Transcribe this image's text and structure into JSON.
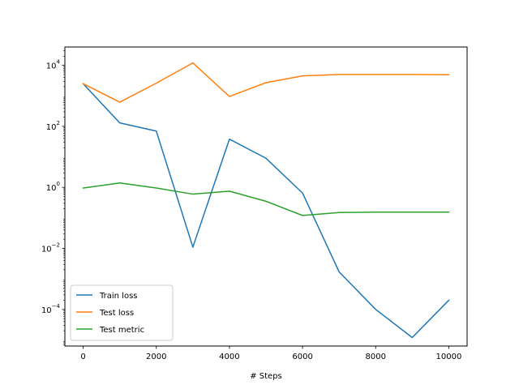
{
  "chart_data": {
    "type": "line",
    "title": "",
    "xlabel": "# Steps",
    "ylabel": "",
    "yscale": "log",
    "xlim": [
      -500,
      10500
    ],
    "ylim_log10": [
      -5.2,
      4.6
    ],
    "x_ticks": [
      0,
      2000,
      4000,
      6000,
      8000,
      10000
    ],
    "x_tick_labels": [
      "0",
      "2000",
      "4000",
      "6000",
      "8000",
      "10000"
    ],
    "y_ticks_exp": [
      4,
      2,
      0,
      -2,
      -4
    ],
    "y_tick_base": "10",
    "grid": false,
    "legend_position": "lower-left",
    "x": [
      0,
      1000,
      2000,
      3000,
      4000,
      5000,
      6000,
      7000,
      8000,
      9000,
      10000
    ],
    "series": [
      {
        "name": "Train loss",
        "color": "#1f77b4",
        "values": [
          2500,
          130,
          70,
          0.011,
          38,
          9,
          0.65,
          0.0017,
          0.0001,
          1.2e-05,
          0.0002
        ]
      },
      {
        "name": "Test loss",
        "color": "#ff7f0e",
        "values": [
          2500,
          620,
          2600,
          12000,
          950,
          2700,
          4500,
          5000,
          5000,
          5000,
          4900
        ]
      },
      {
        "name": "Test metric",
        "color": "#2ca02c",
        "values": [
          0.95,
          1.4,
          0.95,
          0.6,
          0.75,
          0.35,
          0.12,
          0.15,
          0.155,
          0.155,
          0.155
        ]
      }
    ]
  }
}
